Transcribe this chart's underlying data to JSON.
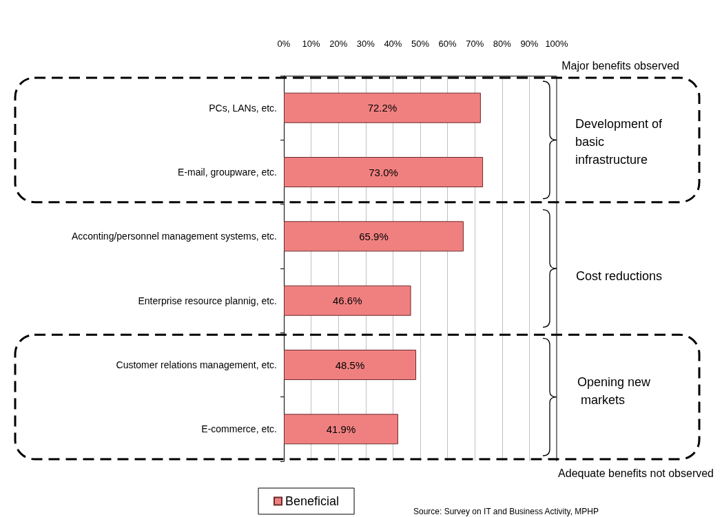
{
  "chart_data": {
    "type": "bar",
    "orientation": "horizontal",
    "categories": [
      "PCs, LANs, etc.",
      "E-mail, groupware, etc.",
      "Acconting/personnel management systems, etc.",
      "Enterprise resource plannig, etc.",
      "Customer relations management, etc.",
      "E-commerce, etc."
    ],
    "series": [
      {
        "name": "Beneficial",
        "color": "#f08080",
        "values": [
          72.2,
          73.0,
          65.9,
          46.6,
          48.5,
          41.9
        ],
        "value_labels": [
          "72.2%",
          "73.0%",
          "65.9%",
          "46.6%",
          "48.5%",
          "41.9%"
        ]
      }
    ],
    "xlim": [
      0,
      100
    ],
    "xticks": [
      {
        "value": 0,
        "label": "0%"
      },
      {
        "value": 10,
        "label": "10%"
      },
      {
        "value": 20,
        "label": "20%"
      },
      {
        "value": 30,
        "label": "30%"
      },
      {
        "value": 40,
        "label": "40%"
      },
      {
        "value": 50,
        "label": "50%"
      },
      {
        "value": 60,
        "label": "60%"
      },
      {
        "value": 70,
        "label": "70%"
      },
      {
        "value": 80,
        "label": "80%"
      },
      {
        "value": 90,
        "label": "90%"
      },
      {
        "value": 100,
        "label": "100%"
      }
    ],
    "grid": "x",
    "legend": "bottom",
    "annotations": [
      "Major benefits observed",
      "Adequate benefits not observed",
      "Development of basic infrastructure",
      "Cost reductions",
      "Opening new markets",
      "Source: Survey on IT and Business Activity, MPHP"
    ]
  }
}
